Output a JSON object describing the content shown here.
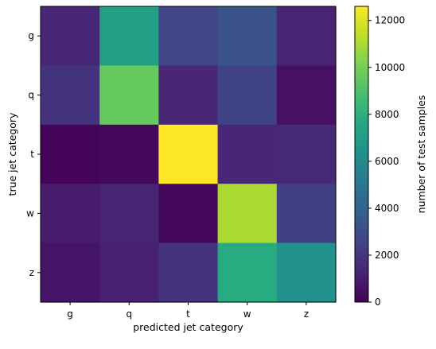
{
  "chart_data": {
    "type": "heatmap",
    "x_categories": [
      "g",
      "q",
      "t",
      "w",
      "z"
    ],
    "y_categories": [
      "g",
      "q",
      "t",
      "w",
      "z"
    ],
    "xlabel": "predicted jet category",
    "ylabel": "true jet category",
    "colorbar_label": "number of test samples",
    "colorbar_ticks": [
      0,
      2000,
      4000,
      6000,
      8000,
      10000,
      12000
    ],
    "colorbar_range": [
      0,
      12600
    ],
    "colormap": "viridis",
    "values": [
      [
        1400,
        7200,
        2600,
        3200,
        1300
      ],
      [
        1900,
        9600,
        1400,
        2500,
        600
      ],
      [
        100,
        300,
        12600,
        1400,
        1500
      ],
      [
        1000,
        1300,
        300,
        11000,
        2400
      ],
      [
        700,
        1200,
        1900,
        7800,
        6400
      ]
    ]
  }
}
